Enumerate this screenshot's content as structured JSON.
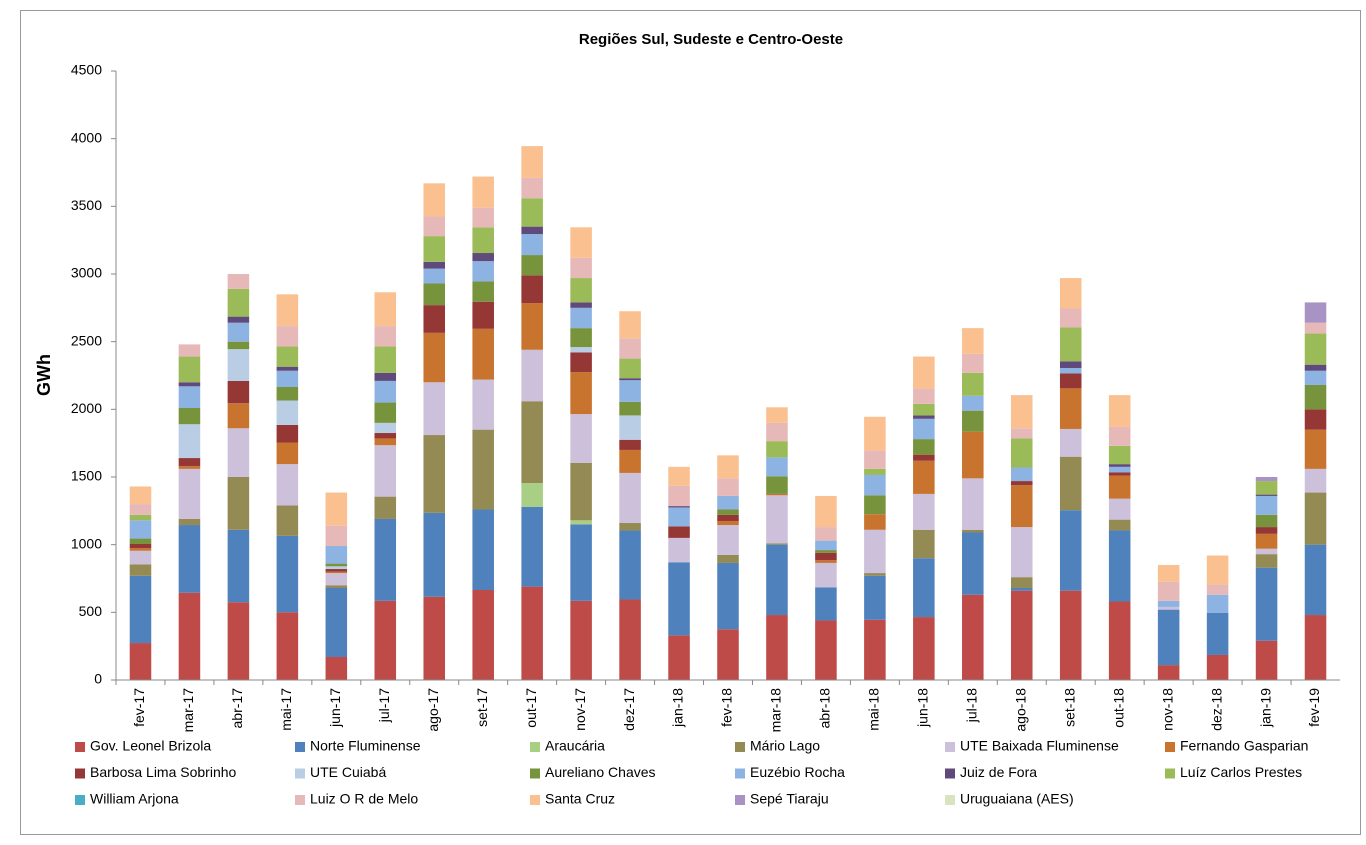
{
  "chart_data": {
    "type": "stacked_bar",
    "title": "Regiões Sul, Sudeste e Centro-Oeste",
    "y_label": "GWh",
    "categories": [
      "fev-17",
      "mar-17",
      "abr-17",
      "mai-17",
      "jun-17",
      "jul-17",
      "ago-17",
      "set-17",
      "out-17",
      "nov-17",
      "dez-17",
      "jan-18",
      "fev-18",
      "mar-18",
      "abr-18",
      "mai-18",
      "jun-18",
      "jul-18",
      "ago-18",
      "set-18",
      "out-18",
      "nov-18",
      "dez-18",
      "jan-19",
      "fev-19"
    ],
    "ylim": [
      0,
      4500
    ],
    "yticks": [
      0,
      500,
      1000,
      1500,
      2000,
      2500,
      3000,
      3500,
      4000,
      4500
    ],
    "grid": false,
    "series": [
      {
        "name": "Gov. Leonel Brizola",
        "color": "#be4b48",
        "values": [
          273,
          645,
          575,
          500,
          170,
          585,
          615,
          665,
          690,
          585,
          595,
          330,
          375,
          480,
          440,
          445,
          465,
          630,
          660,
          660,
          580,
          110,
          185,
          290,
          480
        ]
      },
      {
        "name": "Norte Fluminense",
        "color": "#4f81bd",
        "values": [
          497,
          500,
          535,
          565,
          510,
          605,
          620,
          595,
          590,
          565,
          510,
          540,
          490,
          520,
          245,
          325,
          435,
          460,
          20,
          595,
          525,
          410,
          310,
          540,
          520
        ]
      },
      {
        "name": "Araucária",
        "color": "#a9cf85",
        "values": [
          0,
          0,
          0,
          0,
          0,
          0,
          0,
          0,
          175,
          30,
          0,
          0,
          0,
          0,
          0,
          0,
          0,
          0,
          0,
          0,
          0,
          0,
          0,
          0,
          0
        ]
      },
      {
        "name": "Mário Lago",
        "color": "#948a54",
        "values": [
          85,
          45,
          390,
          225,
          20,
          165,
          575,
          590,
          605,
          425,
          55,
          0,
          60,
          10,
          0,
          20,
          210,
          20,
          80,
          395,
          80,
          0,
          0,
          100,
          385
        ]
      },
      {
        "name": "UTE Baixada Fluminense",
        "color": "#ccc0da",
        "values": [
          100,
          370,
          360,
          305,
          90,
          380,
          390,
          370,
          380,
          360,
          370,
          180,
          220,
          355,
          180,
          320,
          265,
          380,
          370,
          205,
          155,
          20,
          0,
          40,
          175
        ]
      },
      {
        "name": "Fernando Gasparian",
        "color": "#c8732e",
        "values": [
          20,
          20,
          185,
          160,
          10,
          50,
          365,
          375,
          345,
          310,
          170,
          0,
          30,
          10,
          20,
          115,
          245,
          345,
          310,
          300,
          170,
          0,
          0,
          110,
          290
        ]
      },
      {
        "name": "Barbosa Lima Sobrinho",
        "color": "#953735",
        "values": [
          30,
          60,
          165,
          130,
          20,
          40,
          205,
          200,
          205,
          145,
          75,
          85,
          45,
          0,
          55,
          0,
          45,
          0,
          30,
          110,
          25,
          0,
          0,
          50,
          150
        ]
      },
      {
        "name": "UTE Cuiabá",
        "color": "#b9cde5",
        "values": [
          0,
          250,
          235,
          180,
          20,
          75,
          0,
          0,
          0,
          40,
          180,
          0,
          0,
          0,
          0,
          0,
          0,
          0,
          0,
          0,
          0,
          0,
          0,
          0,
          0
        ]
      },
      {
        "name": "Aureliano Chaves",
        "color": "#77933c",
        "values": [
          40,
          120,
          55,
          100,
          20,
          150,
          160,
          150,
          150,
          140,
          100,
          0,
          40,
          130,
          20,
          140,
          115,
          155,
          0,
          0,
          0,
          0,
          0,
          90,
          180
        ]
      },
      {
        "name": "Euzébio Rocha",
        "color": "#8db3e2",
        "values": [
          135,
          160,
          140,
          120,
          130,
          160,
          110,
          150,
          155,
          150,
          160,
          140,
          100,
          140,
          70,
          150,
          150,
          110,
          100,
          40,
          40,
          45,
          135,
          140,
          105
        ]
      },
      {
        "name": "Juiz de Fora",
        "color": "#604a7b",
        "values": [
          0,
          30,
          45,
          30,
          0,
          60,
          50,
          60,
          55,
          40,
          15,
          10,
          0,
          0,
          0,
          0,
          25,
          0,
          0,
          50,
          20,
          0,
          0,
          10,
          45
        ]
      },
      {
        "name": "Luíz Carlos Prestes",
        "color": "#9bbb59",
        "values": [
          40,
          190,
          205,
          150,
          0,
          195,
          190,
          190,
          210,
          180,
          145,
          0,
          0,
          120,
          0,
          45,
          85,
          170,
          215,
          250,
          135,
          0,
          0,
          100,
          230
        ]
      },
      {
        "name": "William Arjona",
        "color": "#4bacc6",
        "values": [
          0,
          0,
          0,
          0,
          0,
          0,
          0,
          0,
          0,
          0,
          0,
          0,
          0,
          0,
          0,
          0,
          0,
          0,
          0,
          0,
          0,
          0,
          0,
          0,
          0
        ]
      },
      {
        "name": "Luiz O R de Melo",
        "color": "#e6b9b8",
        "values": [
          80,
          90,
          110,
          150,
          150,
          150,
          145,
          145,
          150,
          150,
          150,
          150,
          130,
          135,
          100,
          135,
          115,
          140,
          75,
          140,
          140,
          140,
          75,
          0,
          80
        ]
      },
      {
        "name": "Santa Cruz",
        "color": "#fac090",
        "values": [
          130,
          0,
          0,
          235,
          245,
          250,
          245,
          230,
          235,
          225,
          200,
          140,
          170,
          115,
          230,
          250,
          235,
          190,
          245,
          225,
          235,
          125,
          215,
          0,
          0
        ]
      },
      {
        "name": "Sepé Tiaraju",
        "color": "#a992c4",
        "values": [
          0,
          0,
          0,
          0,
          0,
          0,
          0,
          0,
          0,
          0,
          0,
          0,
          0,
          0,
          0,
          0,
          0,
          0,
          0,
          0,
          0,
          0,
          0,
          30,
          150
        ]
      },
      {
        "name": "Uruguaiana (AES)",
        "color": "#d7e4bd",
        "values": [
          0,
          0,
          0,
          0,
          0,
          0,
          0,
          0,
          0,
          0,
          0,
          0,
          0,
          0,
          0,
          0,
          0,
          0,
          0,
          0,
          0,
          0,
          0,
          0,
          0
        ]
      }
    ]
  }
}
